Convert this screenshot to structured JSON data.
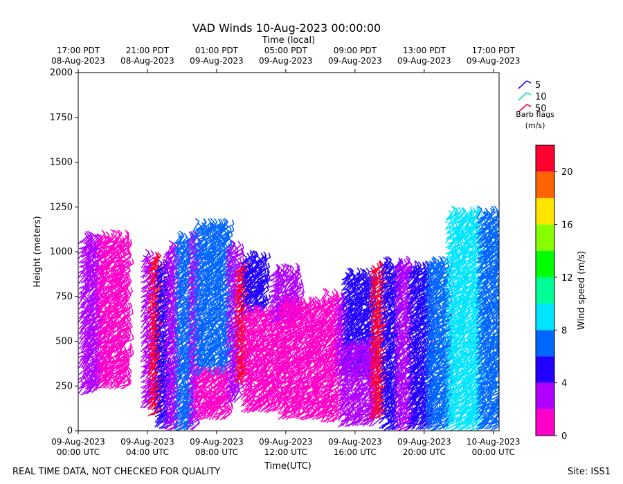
{
  "chart_data": {
    "type": "scatter",
    "title": "VAD Winds 10-Aug-2023 00:00:00",
    "top_axis_label": "Time (local)",
    "xlabel": "Time(UTC)",
    "ylabel": "Height (meters)",
    "ylim": [
      0,
      2000
    ],
    "xlim_hours": [
      0,
      24.33
    ],
    "y_ticks": [
      0,
      250,
      500,
      750,
      1000,
      1250,
      1500,
      1750,
      2000
    ],
    "x_ticks_utc": [
      {
        "hour": 0,
        "line1": "09-Aug-2023",
        "line2": "00:00 UTC"
      },
      {
        "hour": 4,
        "line1": "09-Aug-2023",
        "line2": "04:00 UTC"
      },
      {
        "hour": 8,
        "line1": "09-Aug-2023",
        "line2": "08:00 UTC"
      },
      {
        "hour": 12,
        "line1": "09-Aug-2023",
        "line2": "12:00 UTC"
      },
      {
        "hour": 16,
        "line1": "09-Aug-2023",
        "line2": "16:00 UTC"
      },
      {
        "hour": 20,
        "line1": "09-Aug-2023",
        "line2": "20:00 UTC"
      },
      {
        "hour": 24,
        "line1": "10-Aug-2023",
        "line2": "00:00 UTC"
      }
    ],
    "x_ticks_local": [
      {
        "hour": 0,
        "line1": "17:00 PDT",
        "line2": "08-Aug-2023"
      },
      {
        "hour": 4,
        "line1": "21:00 PDT",
        "line2": "08-Aug-2023"
      },
      {
        "hour": 8,
        "line1": "01:00 PDT",
        "line2": "09-Aug-2023"
      },
      {
        "hour": 12,
        "line1": "05:00 PDT",
        "line2": "09-Aug-2023"
      },
      {
        "hour": 16,
        "line1": "09:00 PDT",
        "line2": "09-Aug-2023"
      },
      {
        "hour": 20,
        "line1": "13:00 PDT",
        "line2": "09-Aug-2023"
      },
      {
        "hour": 24,
        "line1": "17:00 PDT",
        "line2": "09-Aug-2023"
      }
    ],
    "barb_legend": {
      "title_line1": "Barb flags",
      "title_line2": "(m/s)",
      "items": [
        {
          "label": "5",
          "color": "#1a00ff"
        },
        {
          "label": "10",
          "color": "#00e5a0"
        },
        {
          "label": "50",
          "color": "#ff0030"
        }
      ]
    },
    "colorbar": {
      "label": "Wind speed (m/s)",
      "range": [
        0,
        22
      ],
      "tick_values": [
        0,
        4,
        8,
        12,
        16,
        20
      ],
      "bins": [
        {
          "min": 0,
          "max": 2,
          "color": "#ff00c8"
        },
        {
          "min": 2,
          "max": 4,
          "color": "#b000ff"
        },
        {
          "min": 4,
          "max": 6,
          "color": "#2200ff"
        },
        {
          "min": 6,
          "max": 8,
          "color": "#0066ff"
        },
        {
          "min": 8,
          "max": 10,
          "color": "#00e5ff"
        },
        {
          "min": 10,
          "max": 12,
          "color": "#00ff96"
        },
        {
          "min": 12,
          "max": 14,
          "color": "#00ff00"
        },
        {
          "min": 14,
          "max": 16,
          "color": "#88ff00"
        },
        {
          "min": 16,
          "max": 18,
          "color": "#ffe600"
        },
        {
          "min": 18,
          "max": 20,
          "color": "#ff6400"
        },
        {
          "min": 20,
          "max": 22,
          "color": "#ff0030"
        }
      ]
    },
    "segments": [
      {
        "t0": 0.0,
        "t1": 0.5,
        "zmin": 200,
        "zmax": 1050,
        "speed": 3
      },
      {
        "t0": 0.5,
        "t1": 1.0,
        "zmin": 210,
        "zmax": 1030,
        "speed": 3
      },
      {
        "t0": 1.0,
        "t1": 2.6,
        "zmin": 230,
        "zmax": 1060,
        "speed": 1
      },
      {
        "t0": 3.6,
        "t1": 4.0,
        "zmin": 120,
        "zmax": 960,
        "speed": 3
      },
      {
        "t0": 4.0,
        "t1": 4.4,
        "zmin": 80,
        "zmax": 930,
        "speed": 21
      },
      {
        "t0": 4.4,
        "t1": 4.9,
        "zmin": 10,
        "zmax": 900,
        "speed": 5
      },
      {
        "t0": 4.9,
        "t1": 5.5,
        "zmin": 0,
        "zmax": 1000,
        "speed": 3
      },
      {
        "t0": 5.5,
        "t1": 6.3,
        "zmin": 0,
        "zmax": 1060,
        "speed": 7
      },
      {
        "t0": 6.3,
        "t1": 6.6,
        "zmin": 0,
        "zmax": 1040,
        "speed": 3
      },
      {
        "t0": 6.6,
        "t1": 8.5,
        "zmin": 300,
        "zmax": 1120,
        "speed": 7
      },
      {
        "t0": 6.6,
        "t1": 8.5,
        "zmin": 60,
        "zmax": 300,
        "speed": 1
      },
      {
        "t0": 8.5,
        "t1": 9.0,
        "zmin": 150,
        "zmax": 1000,
        "speed": 3
      },
      {
        "t0": 9.0,
        "t1": 9.4,
        "zmin": 260,
        "zmax": 900,
        "speed": 21
      },
      {
        "t0": 9.4,
        "t1": 10.5,
        "zmin": 650,
        "zmax": 950,
        "speed": 5
      },
      {
        "t0": 9.4,
        "t1": 11.5,
        "zmin": 100,
        "zmax": 650,
        "speed": 1
      },
      {
        "t0": 11.0,
        "t1": 12.5,
        "zmin": 600,
        "zmax": 870,
        "speed": 3
      },
      {
        "t0": 11.5,
        "t1": 14.0,
        "zmin": 60,
        "zmax": 700,
        "speed": 1
      },
      {
        "t0": 14.0,
        "t1": 14.8,
        "zmin": 40,
        "zmax": 720,
        "speed": 1
      },
      {
        "t0": 14.8,
        "t1": 15.2,
        "zmin": 300,
        "zmax": 700,
        "speed": 3
      },
      {
        "t0": 15.2,
        "t1": 16.8,
        "zmin": 300,
        "zmax": 850,
        "speed": 5
      },
      {
        "t0": 15.0,
        "t1": 17.0,
        "zmin": 20,
        "zmax": 450,
        "speed": 3
      },
      {
        "t0": 16.8,
        "t1": 17.4,
        "zmin": 60,
        "zmax": 900,
        "speed": 21
      },
      {
        "t0": 17.4,
        "t1": 18.2,
        "zmin": 0,
        "zmax": 920,
        "speed": 5
      },
      {
        "t0": 18.2,
        "t1": 19.0,
        "zmin": 0,
        "zmax": 900,
        "speed": 3
      },
      {
        "t0": 19.0,
        "t1": 20.0,
        "zmin": 0,
        "zmax": 870,
        "speed": 5
      },
      {
        "t0": 20.0,
        "t1": 21.2,
        "zmin": 0,
        "zmax": 920,
        "speed": 7
      },
      {
        "t0": 21.2,
        "t1": 23.0,
        "zmin": 0,
        "zmax": 1180,
        "speed": 9
      },
      {
        "t0": 23.0,
        "t1": 24.2,
        "zmin": 0,
        "zmax": 1180,
        "speed": 7
      }
    ]
  },
  "footer": {
    "quality_note": "REAL TIME DATA, NOT CHECKED FOR QUALITY",
    "site": "Site: ISS1"
  }
}
